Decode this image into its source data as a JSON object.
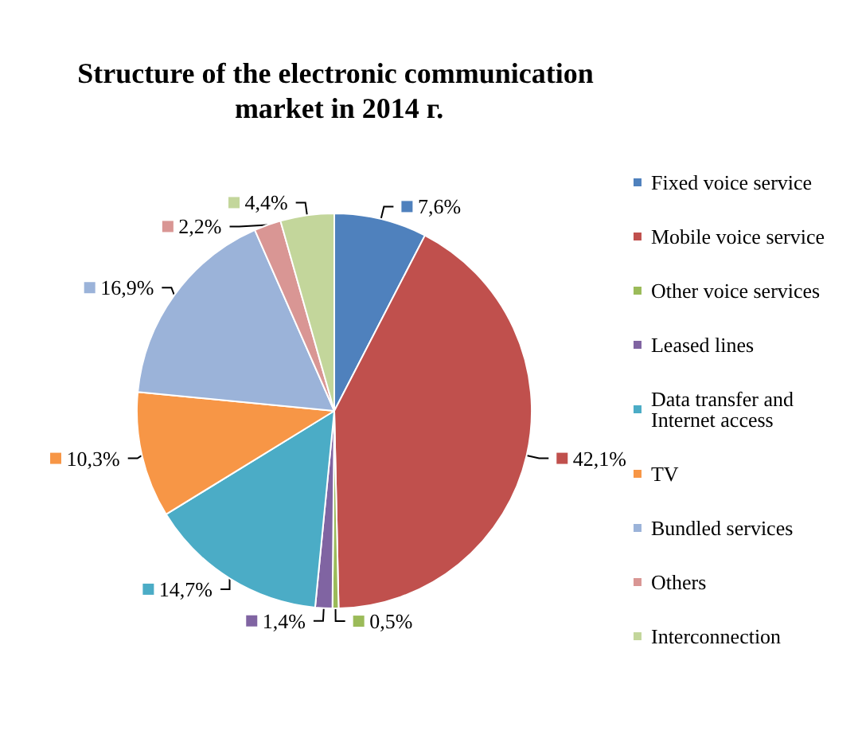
{
  "chart_data": {
    "type": "pie",
    "title": "Structure of the electronic communication market in 2014 г.",
    "categories": [
      "Fixed voice service",
      "Mobile voice service",
      "Other voice services",
      "Leased lines",
      "Data transfer and Internet access",
      "TV",
      "Bundled services",
      "Others",
      "Interconnection"
    ],
    "values": [
      7.6,
      42.1,
      0.5,
      1.4,
      14.7,
      10.3,
      16.9,
      2.2,
      4.4
    ],
    "value_labels": [
      "7,6%",
      "42,1%",
      "0,5%",
      "1,4%",
      "14,7%",
      "10,3%",
      "16,9%",
      "2,2%",
      "4,4%"
    ],
    "colors": [
      "#4f81bd",
      "#c0504d",
      "#9bbb59",
      "#8064a2",
      "#4bacc6",
      "#f79646",
      "#9bb3d9",
      "#d99694",
      "#c3d69b"
    ],
    "legend": "right"
  }
}
